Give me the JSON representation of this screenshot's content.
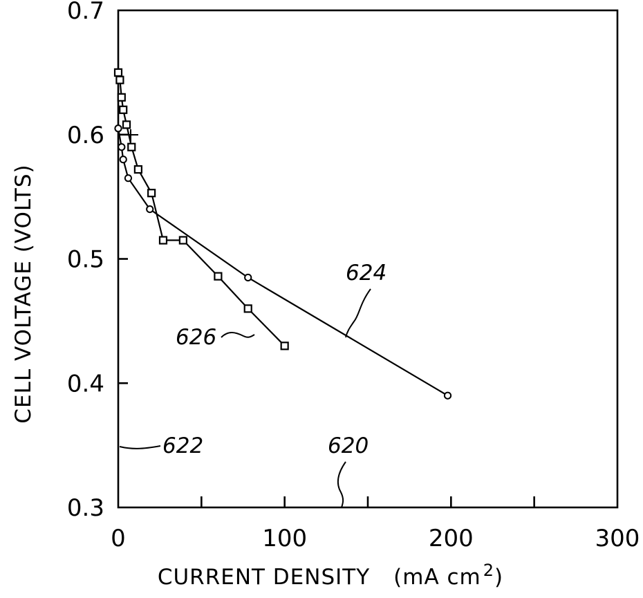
{
  "chart_data": {
    "type": "line",
    "title": "",
    "xlabel": "CURRENT DENSITY",
    "xlabel_unit_prefix": "(mA cm",
    "xlabel_unit_sup": "2",
    "xlabel_unit_suffix": ")",
    "ylabel": "CELL VOLTAGE (VOLTS)",
    "xlim": [
      0,
      300
    ],
    "ylim": [
      0.3,
      0.7
    ],
    "xticks": [
      0,
      100,
      200,
      300
    ],
    "xtick_labels": [
      "0",
      "100",
      "200",
      "300"
    ],
    "yticks": [
      0.3,
      0.4,
      0.5,
      0.6,
      0.7
    ],
    "ytick_labels": [
      "0.3",
      "0.4",
      "0.5",
      "0.6",
      "0.7"
    ],
    "grid": false,
    "series": [
      {
        "name": "624",
        "marker": "circle",
        "x": [
          0,
          2,
          3,
          6,
          19,
          78,
          198
        ],
        "y": [
          0.605,
          0.59,
          0.58,
          0.565,
          0.54,
          0.485,
          0.39
        ]
      },
      {
        "name": "626",
        "marker": "square",
        "x": [
          0,
          1,
          2,
          3,
          5,
          8,
          12,
          20,
          27,
          39,
          60,
          78,
          100
        ],
        "y": [
          0.65,
          0.644,
          0.63,
          0.62,
          0.608,
          0.59,
          0.572,
          0.553,
          0.515,
          0.515,
          0.486,
          0.46,
          0.43
        ]
      }
    ],
    "annotations": [
      {
        "text": "624",
        "refers_to": "series-624-curve"
      },
      {
        "text": "626",
        "refers_to": "series-626-curve"
      },
      {
        "text": "622",
        "refers_to": "y-axis"
      },
      {
        "text": "620",
        "refers_to": "x-axis"
      }
    ]
  }
}
